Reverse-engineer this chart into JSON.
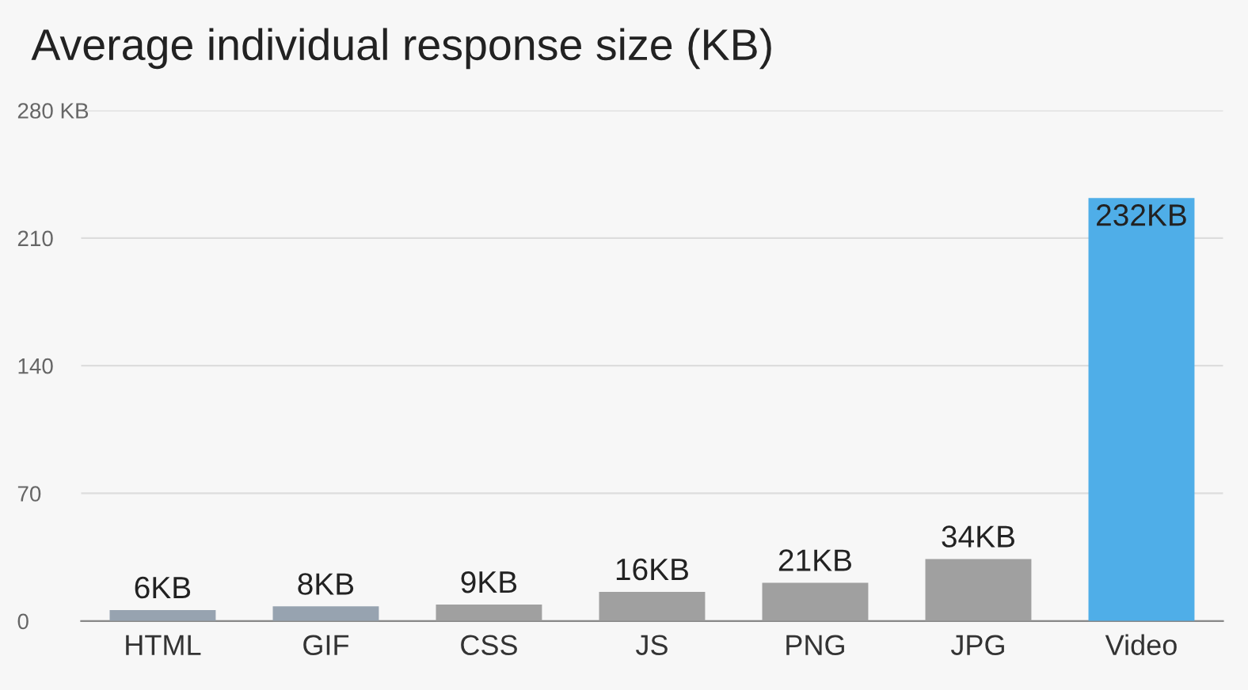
{
  "chart_data": {
    "type": "bar",
    "title": "Average individual response size (KB)",
    "categories": [
      "HTML",
      "GIF",
      "CSS",
      "JS",
      "PNG",
      "JPG",
      "Video"
    ],
    "values": [
      6,
      8,
      9,
      16,
      21,
      34,
      232
    ],
    "value_labels": [
      "6KB",
      "8KB",
      "9KB",
      "16KB",
      "21KB",
      "34KB",
      "232KB"
    ],
    "colors": [
      "#97a3b0",
      "#97a3b0",
      "#a0a0a0",
      "#a0a0a0",
      "#a0a0a0",
      "#a0a0a0",
      "#4faee8"
    ],
    "ylim": [
      0,
      280
    ],
    "yticks": [
      0,
      70,
      140,
      210,
      {
        "value": 280,
        "label": "280 KB"
      }
    ],
    "grid": "y"
  }
}
